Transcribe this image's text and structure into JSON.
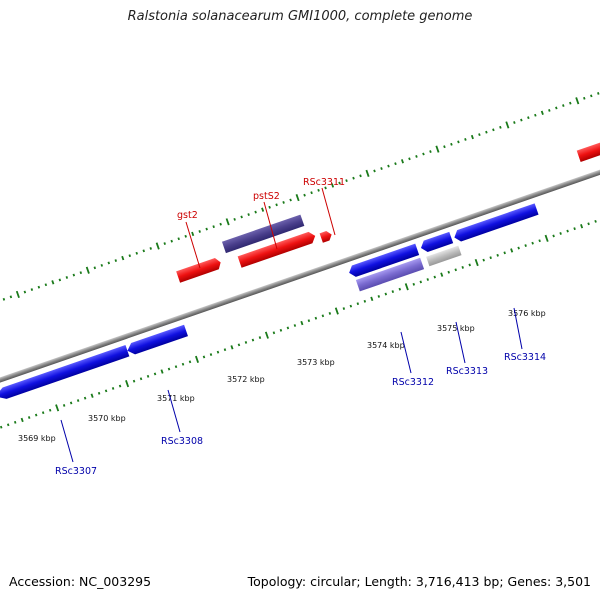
{
  "title": "Ralstonia solanacearum GMI1000, complete genome",
  "footer": {
    "accession": "Accession: NC_003295",
    "summary": "Topology: circular; Length: 3,716,413 bp; Genes: 3,501"
  },
  "colors": {
    "forward_gene": "#ee1111",
    "reverse_gene": "#1010e0",
    "forward_label": "#cc0000",
    "reverse_label": "#0000aa",
    "pseudo_gene": "#bbbbbb",
    "highlight_gene": "#4a3f8c",
    "highlight_gene_reverse": "#7a6bd0",
    "backbone": "#888888",
    "tick_marks": "#1a7a1a"
  },
  "scale_labels": [
    "3569 kbp",
    "3570 kbp",
    "3571 kbp",
    "3572 kbp",
    "3573 kbp",
    "3574 kbp",
    "3575 kbp",
    "3576 kbp"
  ],
  "gene_labels": {
    "forward": [
      "gst2",
      "pstS2",
      "RSc3311"
    ],
    "reverse": [
      "RSc3307",
      "RSc3308",
      "RSc3312",
      "RSc3313",
      "RSc3314"
    ]
  }
}
